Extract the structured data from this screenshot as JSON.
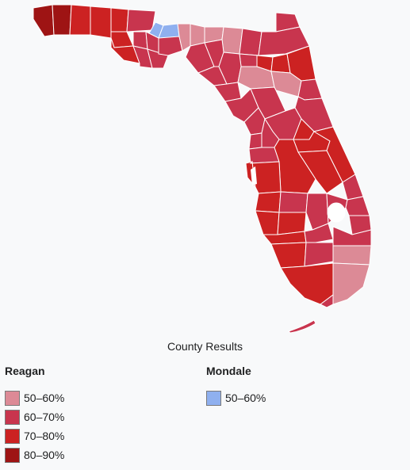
{
  "map": {
    "caption": "County Results",
    "region": "Florida",
    "colors": {
      "reagan_50_60": "#dc8a96",
      "reagan_60_70": "#c8354e",
      "reagan_70_80": "#cc2222",
      "reagan_80_90": "#9e1414",
      "mondale_50_60": "#8fb0ef",
      "border": "#ffffff"
    }
  },
  "legend": {
    "reagan": {
      "heading": "Reagan",
      "items": [
        {
          "label": "50–60%",
          "color": "#dc8a96"
        },
        {
          "label": "60–70%",
          "color": "#c8354e"
        },
        {
          "label": "70–80%",
          "color": "#cc2222"
        },
        {
          "label": "80–90%",
          "color": "#9e1414"
        }
      ]
    },
    "mondale": {
      "heading": "Mondale",
      "items": [
        {
          "label": "50–60%",
          "color": "#8fb0ef"
        }
      ]
    }
  }
}
